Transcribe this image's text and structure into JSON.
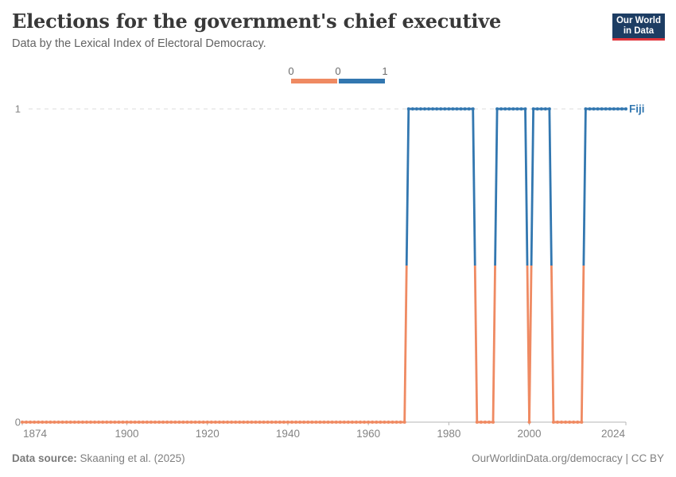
{
  "header": {
    "title": "Elections for the government's chief executive",
    "subtitle": "Data by the Lexical Index of Electoral Democracy."
  },
  "logo": {
    "line1": "Our World",
    "line2": "in Data"
  },
  "legend": {
    "tick_labels": [
      "0",
      "0",
      "1"
    ],
    "bin_colors": [
      "#ef8a62",
      "#3277b0"
    ]
  },
  "footer": {
    "datasource_label": "Data source:",
    "datasource_value": "Skaaning et al. (2025)",
    "credit": "OurWorldinData.org/democracy | CC BY"
  },
  "chart_data": {
    "type": "line",
    "title": "Elections for the government's chief executive",
    "subtitle": "Data by the Lexical Index of Electoral Democracy.",
    "entity": "Fiji",
    "x_range": [
      1874,
      2024
    ],
    "y_range": [
      0,
      1
    ],
    "x_ticks": [
      1874,
      1900,
      1920,
      1940,
      1960,
      1980,
      2000,
      2024
    ],
    "y_ticks": [
      0,
      1
    ],
    "legend_position": "top-center",
    "grid": "dashed gridline at y=1, solid baseline at y=0",
    "colors": {
      "value_0": "#ef8a62",
      "value_1": "#3277b0"
    },
    "series": [
      {
        "name": "Fiji",
        "segments": [
          {
            "from": 1874,
            "to": 1969,
            "value": 0
          },
          {
            "from": 1970,
            "to": 1986,
            "value": 1
          },
          {
            "from": 1987,
            "to": 1991,
            "value": 0
          },
          {
            "from": 1992,
            "to": 1999,
            "value": 1
          },
          {
            "from": 2000,
            "to": 2000,
            "value": 0
          },
          {
            "from": 2001,
            "to": 2005,
            "value": 1
          },
          {
            "from": 2006,
            "to": 2013,
            "value": 0
          },
          {
            "from": 2014,
            "to": 2024,
            "value": 1
          }
        ]
      }
    ]
  }
}
